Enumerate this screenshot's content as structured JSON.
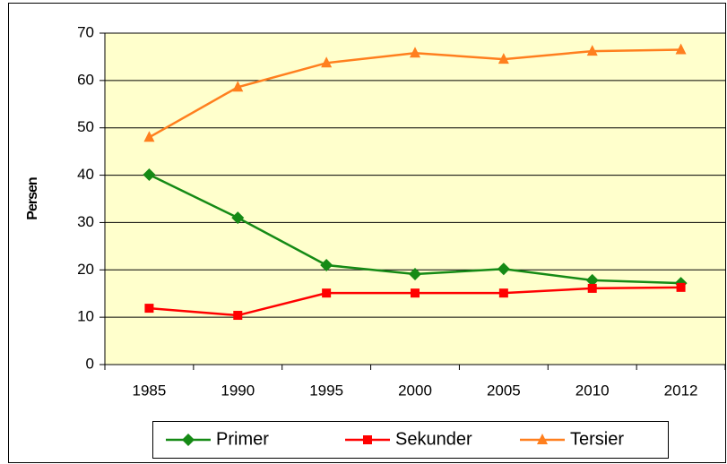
{
  "chart_data": {
    "type": "line",
    "y_label": "Persen",
    "categories": [
      "1985",
      "1990",
      "1995",
      "2000",
      "2005",
      "2010",
      "2012"
    ],
    "series": [
      {
        "name": "Primer",
        "color": "#158a15",
        "marker": "diamond",
        "values": [
          40.1,
          31.0,
          21.0,
          19.1,
          20.2,
          17.8,
          17.2
        ]
      },
      {
        "name": "Sekunder",
        "color": "#ff0000",
        "marker": "square",
        "values": [
          11.9,
          10.4,
          15.1,
          15.1,
          15.1,
          16.1,
          16.3
        ]
      },
      {
        "name": "Tersier",
        "color": "#ff7f1e",
        "marker": "triangle",
        "values": [
          48.0,
          58.6,
          63.7,
          65.8,
          64.5,
          66.2,
          66.5
        ]
      }
    ],
    "ylim": [
      0,
      70
    ],
    "yticks": [
      0,
      10,
      20,
      30,
      40,
      50,
      60,
      70
    ],
    "grid": true,
    "legend": "bottom",
    "plot_background": "#ffffcc"
  }
}
